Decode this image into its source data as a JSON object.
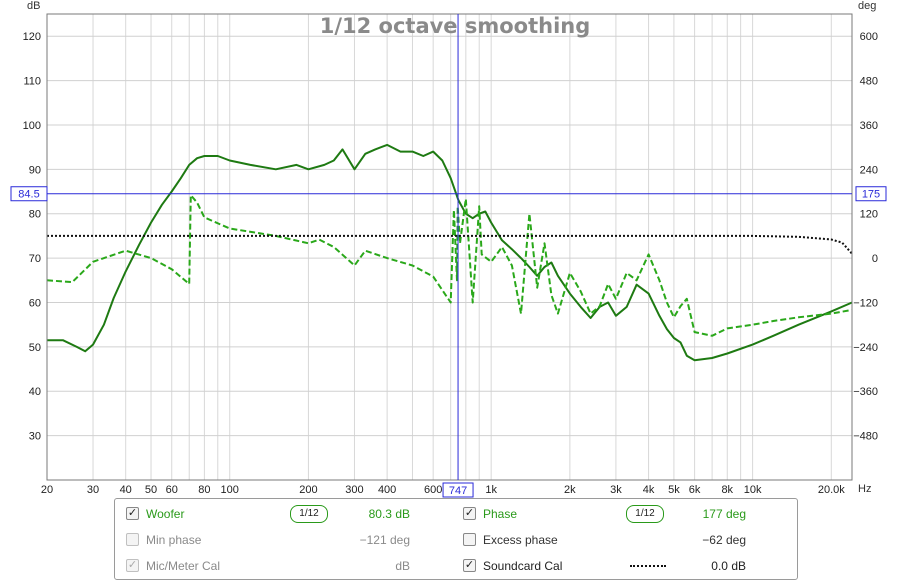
{
  "chart_data": {
    "type": "line",
    "title": "1/12 octave smoothing",
    "left_unit": "dB",
    "right_unit": "deg",
    "x_unit": "Hz",
    "x_scale": "log",
    "xlim": [
      20,
      24000
    ],
    "ylim_left": [
      20,
      125
    ],
    "ylim_right": [
      -600,
      660
    ],
    "x_ticks": [
      20,
      30,
      40,
      50,
      60,
      80,
      100,
      200,
      300,
      400,
      600,
      1000,
      2000,
      3000,
      4000,
      5000,
      6000,
      8000,
      10000,
      20000
    ],
    "x_tick_labels": [
      "20",
      "30",
      "40",
      "50",
      "60",
      "80",
      "100",
      "200",
      "300",
      "400",
      "600",
      "1k",
      "2k",
      "3k",
      "4k",
      "5k",
      "6k",
      "8k",
      "10k",
      "20.0k"
    ],
    "y_ticks_left": [
      30,
      40,
      50,
      60,
      70,
      80,
      90,
      100,
      110,
      120
    ],
    "y_ticks_right": [
      -480,
      -360,
      -240,
      -120,
      0,
      120,
      240,
      360,
      480,
      600
    ],
    "grid": true,
    "cursor": {
      "freq": 747,
      "freq_label": "747",
      "level": 84.5,
      "level_label": "84.5",
      "phase": 175,
      "phase_label": "175"
    },
    "series": [
      {
        "name": "Woofer",
        "axis": "left",
        "color": "#1e7a12",
        "style": "solid",
        "x": [
          20,
          23,
          26,
          28,
          30,
          33,
          36,
          40,
          45,
          50,
          55,
          60,
          65,
          70,
          75,
          80,
          90,
          100,
          120,
          150,
          180,
          200,
          230,
          250,
          270,
          300,
          330,
          360,
          400,
          450,
          500,
          550,
          600,
          650,
          700,
          750,
          800,
          850,
          900,
          950,
          1000,
          1100,
          1200,
          1300,
          1400,
          1500,
          1600,
          1700,
          1800,
          2000,
          2200,
          2400,
          2600,
          2800,
          3000,
          3300,
          3600,
          4000,
          4400,
          4700,
          5000,
          5300,
          5600,
          6000,
          7000,
          8000,
          10000,
          12000,
          15000,
          20000,
          24000
        ],
        "values": [
          51.5,
          51.5,
          50,
          49,
          50.5,
          55,
          61,
          67,
          73,
          78,
          82,
          85,
          88,
          91,
          92.5,
          93,
          93,
          92,
          91,
          90,
          91,
          90,
          91,
          92,
          94.5,
          90,
          93.5,
          94.5,
          95.5,
          94,
          94,
          93,
          94,
          92,
          88,
          83,
          80,
          79,
          80,
          80.5,
          78,
          74,
          72,
          70,
          68,
          66,
          68,
          69,
          66,
          62,
          59,
          56.5,
          59,
          60,
          57,
          59,
          64,
          62,
          57,
          54,
          52,
          51,
          48,
          47,
          47.5,
          48.5,
          50.5,
          52.5,
          55,
          58,
          60
        ]
      },
      {
        "name": "Woofer Phase",
        "axis": "right",
        "color": "#2aa81a",
        "style": "dashed",
        "x": [
          20,
          25,
          30,
          40,
          50,
          60,
          70,
          71,
          75,
          80,
          100,
          150,
          200,
          220,
          250,
          300,
          330,
          400,
          500,
          600,
          700,
          720,
          740,
          745,
          760,
          800,
          850,
          900,
          920,
          1000,
          1100,
          1200,
          1300,
          1400,
          1500,
          1600,
          1700,
          1800,
          2000,
          2200,
          2400,
          2600,
          2800,
          3000,
          3300,
          3600,
          4000,
          4400,
          4700,
          5000,
          5300,
          5600,
          6000,
          7000,
          8000,
          10000,
          12000,
          15000,
          20000,
          24000
        ],
        "values": [
          -60,
          -65,
          -10,
          20,
          0,
          -30,
          -70,
          170,
          150,
          110,
          80,
          60,
          40,
          50,
          30,
          -20,
          20,
          0,
          -20,
          -50,
          -120,
          130,
          -60,
          140,
          40,
          160,
          -120,
          140,
          10,
          -10,
          30,
          -20,
          -150,
          120,
          -80,
          40,
          -100,
          -150,
          -40,
          -90,
          -150,
          -130,
          -70,
          -110,
          -40,
          -60,
          10,
          -60,
          -120,
          -160,
          -130,
          -110,
          -200,
          -210,
          -190,
          -180,
          -170,
          -160,
          -150,
          -140
        ]
      },
      {
        "name": "Soundcard Cal",
        "axis": "left",
        "color": "#111111",
        "style": "dotted",
        "x": [
          20,
          100,
          1000,
          5000,
          10000,
          15000,
          20000,
          22000,
          24000
        ],
        "values": [
          75,
          75,
          75,
          75,
          75,
          74.8,
          74.2,
          73.5,
          71
        ]
      }
    ]
  },
  "legend": {
    "rows": [
      {
        "left_checked": true,
        "left_check": "✓",
        "left_label": "Woofer",
        "left_smoothing": "1/12",
        "left_value": "80.3 dB",
        "right_checked": true,
        "right_check": "✓",
        "right_label": "Phase",
        "right_smoothing": "1/12",
        "right_value": "177 deg"
      },
      {
        "left_checked": false,
        "left_check": "",
        "left_label": "Min phase",
        "left_value": "−121 deg",
        "right_checked": false,
        "right_check": "",
        "right_label": "Excess phase",
        "right_value": "−62 deg"
      },
      {
        "left_checked": true,
        "left_check": "✓",
        "left_label": "Mic/Meter Cal",
        "left_value": "dB",
        "right_checked": true,
        "right_check": "✓",
        "right_label": "Soundcard Cal",
        "right_value": "0.0 dB"
      }
    ]
  }
}
